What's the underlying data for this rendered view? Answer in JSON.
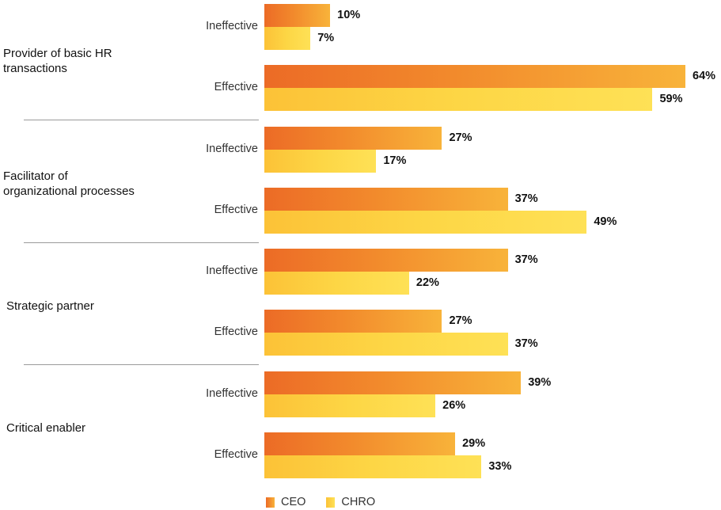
{
  "chart_data": {
    "type": "bar",
    "orientation": "horizontal",
    "xlim": [
      0,
      64
    ],
    "legend": {
      "position": "bottom-left",
      "entries": [
        "CEO",
        "CHRO"
      ]
    },
    "colors": {
      "CEO": "#f28a2c",
      "CHRO": "#fdd645"
    },
    "groups": [
      {
        "label": "Provider of basic HR\ntransactions",
        "rows": [
          {
            "label": "Ineffective",
            "ceo": 10,
            "chro": 7,
            "ceo_label": "10%",
            "chro_label": "7%"
          },
          {
            "label": "Effective",
            "ceo": 64,
            "chro": 59,
            "ceo_label": "64%",
            "chro_label": "59%"
          }
        ]
      },
      {
        "label": "Facilitator of\norganizational processes",
        "rows": [
          {
            "label": "Ineffective",
            "ceo": 27,
            "chro": 17,
            "ceo_label": "27%",
            "chro_label": "17%"
          },
          {
            "label": "Effective",
            "ceo": 37,
            "chro": 49,
            "ceo_label": "37%",
            "chro_label": "49%"
          }
        ]
      },
      {
        "label": "Strategic partner",
        "rows": [
          {
            "label": "Ineffective",
            "ceo": 37,
            "chro": 22,
            "ceo_label": "37%",
            "chro_label": "22%"
          },
          {
            "label": "Effective",
            "ceo": 27,
            "chro": 37,
            "ceo_label": "27%",
            "chro_label": "37%"
          }
        ]
      },
      {
        "label": "Critical enabler",
        "rows": [
          {
            "label": "Ineffective",
            "ceo": 39,
            "chro": 26,
            "ceo_label": "39%",
            "chro_label": "26%"
          },
          {
            "label": "Effective",
            "ceo": 29,
            "chro": 33,
            "ceo_label": "29%",
            "chro_label": "33%"
          }
        ]
      }
    ]
  }
}
